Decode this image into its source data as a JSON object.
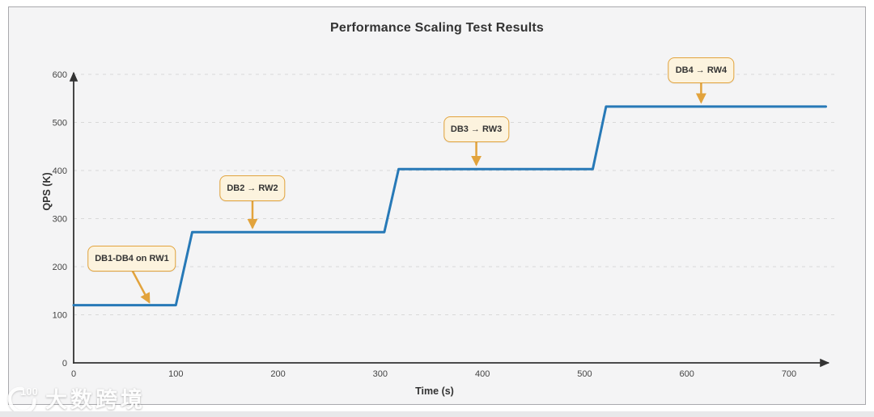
{
  "page": {
    "watermark": {
      "logo": "100",
      "text": "大数跨境"
    }
  },
  "chart_data": {
    "type": "line",
    "title": "Performance Scaling Test Results",
    "xlabel": "Time (s)",
    "ylabel": "QPS (K)",
    "xlim": [
      0,
      740
    ],
    "ylim": [
      0,
      620
    ],
    "x_ticks": [
      0,
      100,
      200,
      300,
      400,
      500,
      600,
      700
    ],
    "y_ticks": [
      0,
      100,
      200,
      300,
      400,
      500,
      600
    ],
    "grid": "horizontal-dashed",
    "legend": "none",
    "series": [
      {
        "name": "QPS",
        "points": [
          [
            0,
            120
          ],
          [
            100,
            120
          ],
          [
            116,
            272
          ],
          [
            304,
            272
          ],
          [
            318,
            403
          ],
          [
            508,
            403
          ],
          [
            521,
            533
          ],
          [
            736,
            533
          ]
        ]
      }
    ],
    "annotations": [
      {
        "label": "DB1-DB4 on RW1",
        "box_x": 57,
        "box_y": 217,
        "tip_x": 74,
        "tip_y": 126
      },
      {
        "label": "DB2 → RW2",
        "box_x": 175,
        "box_y": 363,
        "tip_x": 175,
        "tip_y": 281
      },
      {
        "label": "DB3 → RW3",
        "box_x": 394,
        "box_y": 486,
        "tip_x": 394,
        "tip_y": 412
      },
      {
        "label": "DB4 → RW4",
        "box_x": 614,
        "box_y": 608,
        "tip_x": 614,
        "tip_y": 542
      }
    ],
    "style": {
      "line_color": "#2779b7",
      "axis_color": "#333333",
      "grid_color": "#d9d9d9",
      "annotation_bg": "#fcf3de",
      "annotation_border": "#e2a33c",
      "arrow_color": "#e2a33c"
    }
  }
}
